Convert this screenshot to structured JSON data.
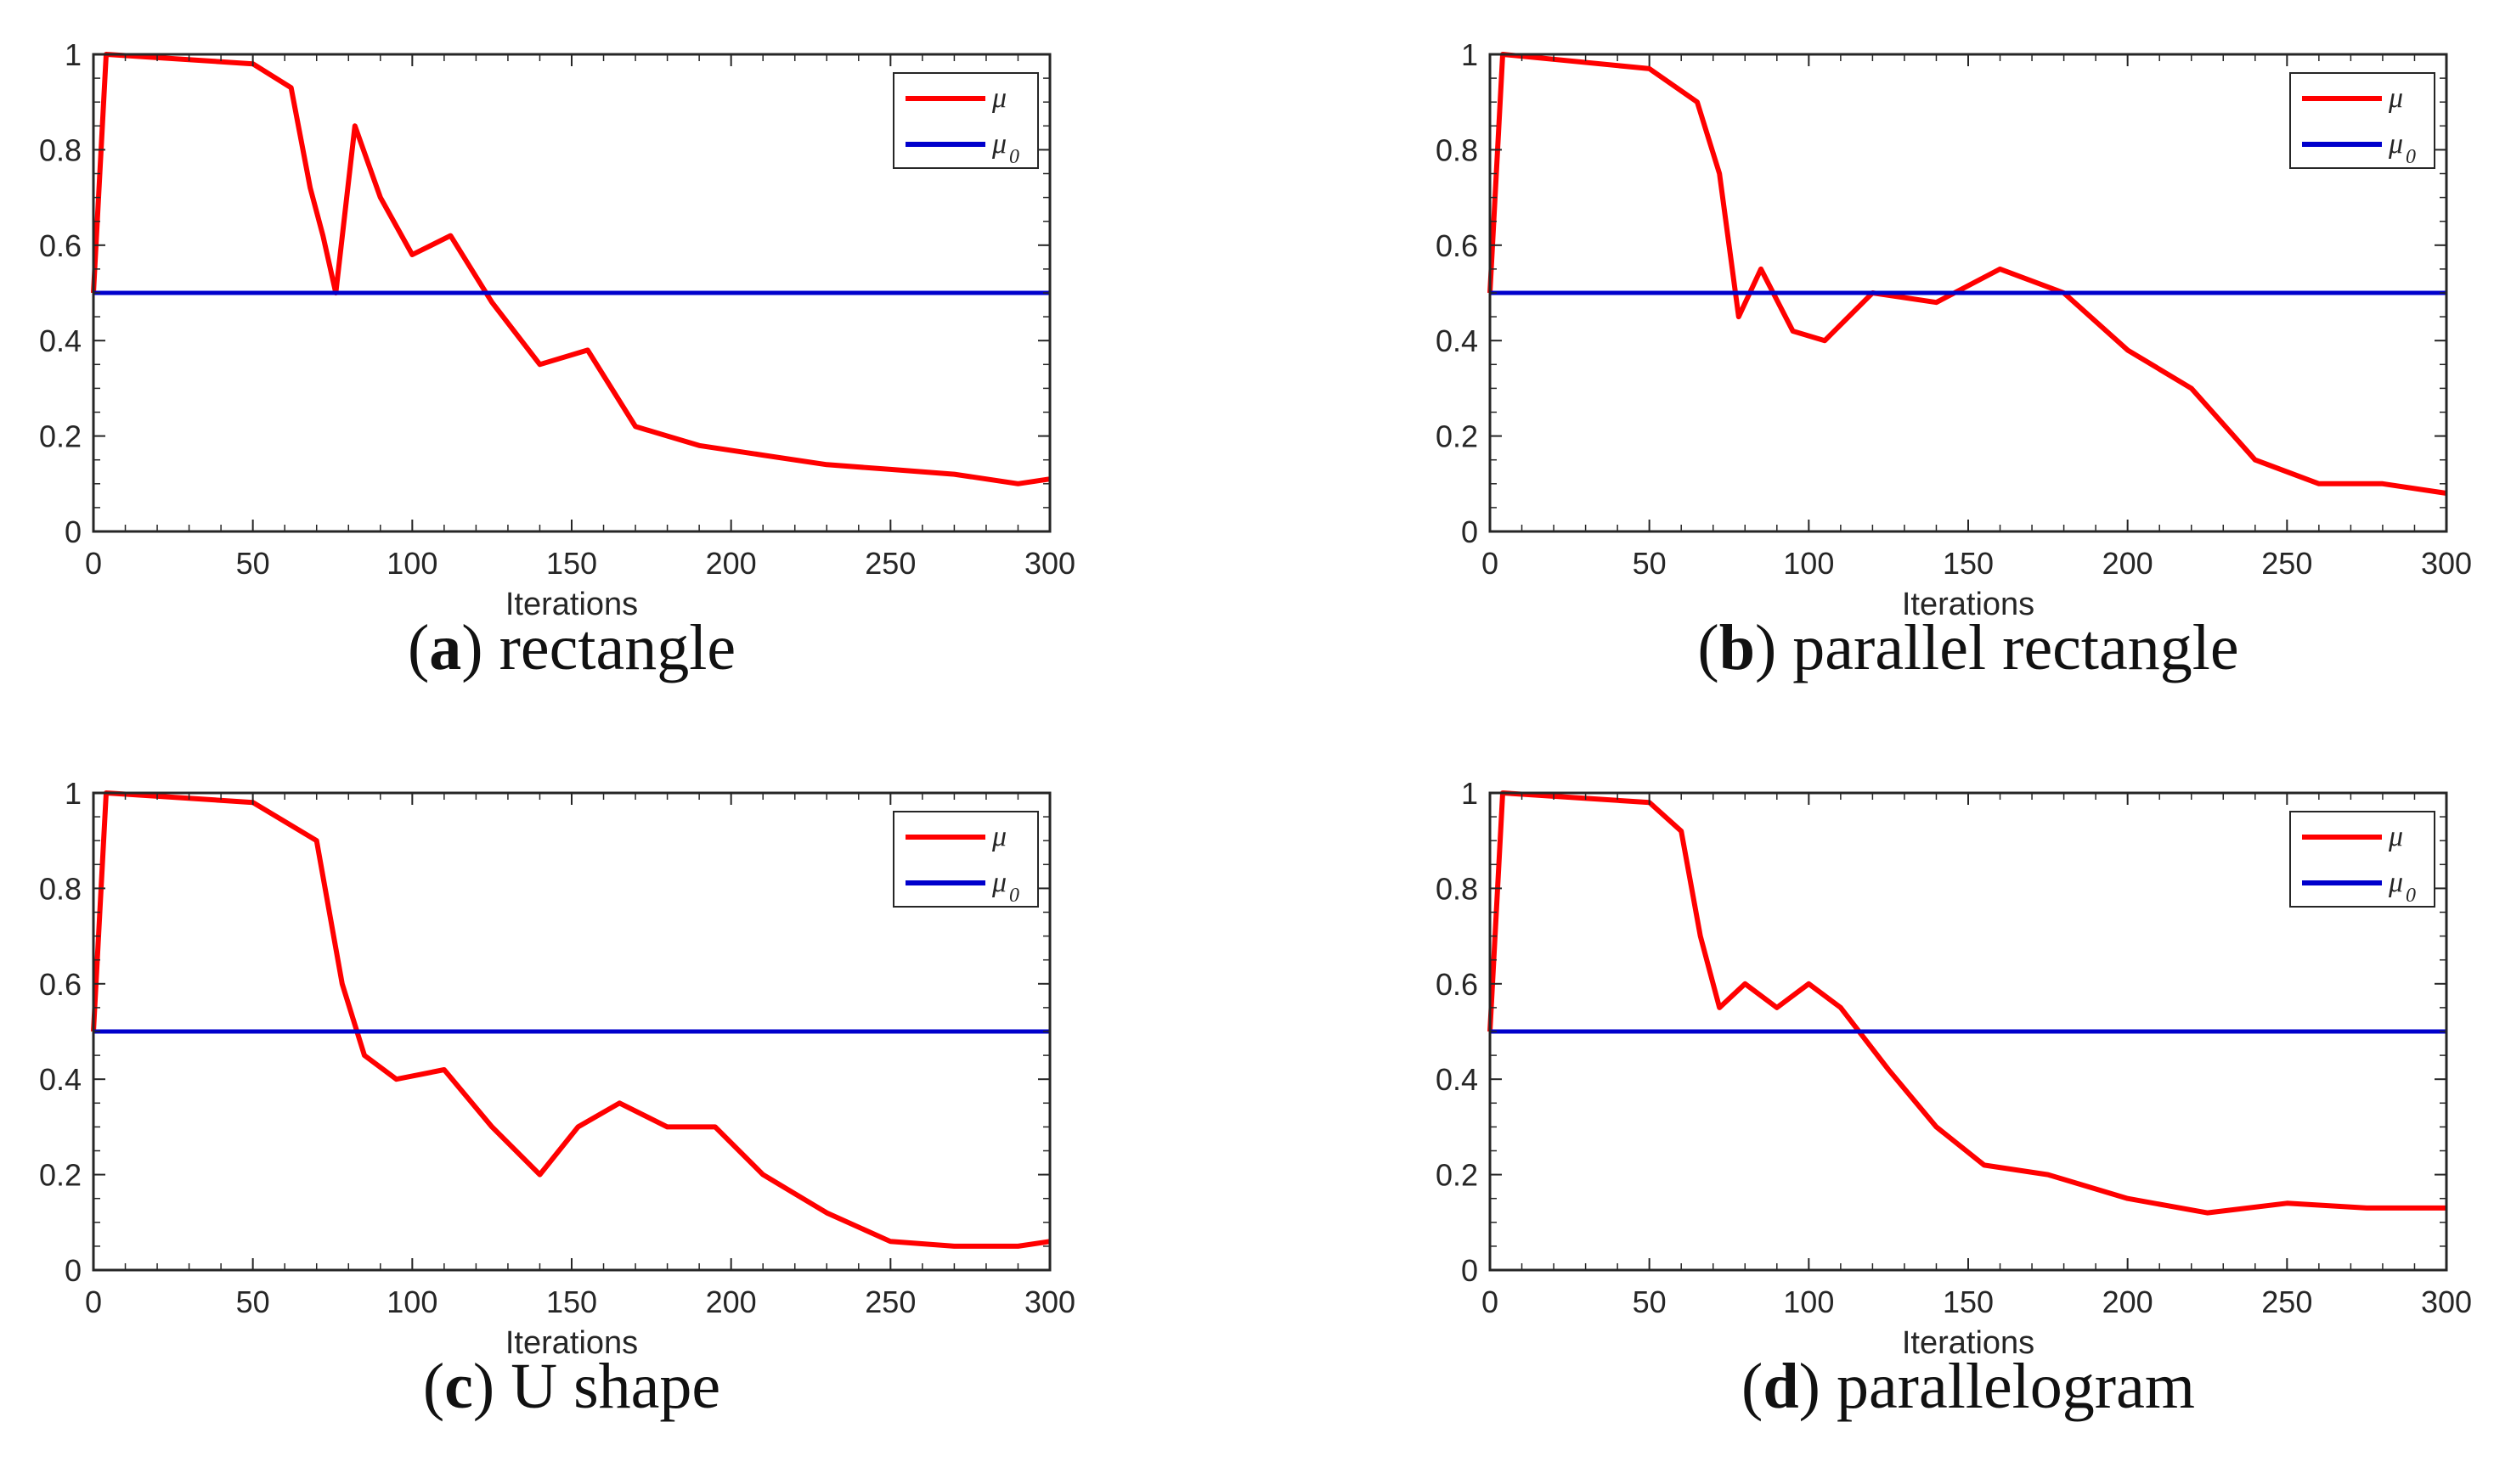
{
  "colors": {
    "mu": "#ff0000",
    "mu0": "#0000cc",
    "axis": "#262626"
  },
  "chart_data": [
    {
      "type": "line",
      "caption_letter": "a",
      "caption_text": "rectangle",
      "xlabel": "Iterations",
      "xlim": [
        0,
        300
      ],
      "ylim": [
        0,
        1
      ],
      "xticks": [
        "0",
        "50",
        "100",
        "150",
        "200",
        "250",
        "300"
      ],
      "yticks": [
        "0",
        "0.2",
        "0.4",
        "0.6",
        "0.8",
        "1"
      ],
      "legend": {
        "position": "top-right",
        "entries": [
          {
            "label": "μ",
            "sub": ""
          },
          {
            "label": "μ",
            "sub": "0"
          }
        ]
      },
      "series": [
        {
          "name": "μ",
          "color": "#ff0000",
          "x": [
            0,
            4,
            50,
            62,
            68,
            72,
            76,
            82,
            90,
            100,
            112,
            125,
            140,
            155,
            170,
            190,
            210,
            230,
            250,
            270,
            290,
            300
          ],
          "values": [
            0.5,
            1.0,
            0.98,
            0.93,
            0.72,
            0.62,
            0.5,
            0.85,
            0.7,
            0.58,
            0.62,
            0.48,
            0.35,
            0.38,
            0.22,
            0.18,
            0.16,
            0.14,
            0.13,
            0.12,
            0.1,
            0.11
          ]
        },
        {
          "name": "μ₀",
          "color": "#0000cc",
          "x": [
            0,
            300
          ],
          "values": [
            0.5,
            0.5
          ]
        }
      ]
    },
    {
      "type": "line",
      "caption_letter": "b",
      "caption_text": "parallel rectangle",
      "xlabel": "Iterations",
      "xlim": [
        0,
        300
      ],
      "ylim": [
        0,
        1
      ],
      "xticks": [
        "0",
        "50",
        "100",
        "150",
        "200",
        "250",
        "300"
      ],
      "yticks": [
        "0",
        "0.2",
        "0.4",
        "0.6",
        "0.8",
        "1"
      ],
      "legend": {
        "position": "top-right",
        "entries": [
          {
            "label": "μ",
            "sub": ""
          },
          {
            "label": "μ",
            "sub": "0"
          }
        ]
      },
      "series": [
        {
          "name": "μ",
          "color": "#ff0000",
          "x": [
            0,
            4,
            50,
            65,
            72,
            78,
            85,
            95,
            105,
            120,
            140,
            160,
            180,
            200,
            220,
            240,
            260,
            280,
            300
          ],
          "values": [
            0.5,
            1.0,
            0.97,
            0.9,
            0.75,
            0.45,
            0.55,
            0.42,
            0.4,
            0.5,
            0.48,
            0.55,
            0.5,
            0.38,
            0.3,
            0.15,
            0.1,
            0.1,
            0.08
          ]
        },
        {
          "name": "μ₀",
          "color": "#0000cc",
          "x": [
            0,
            300
          ],
          "values": [
            0.5,
            0.5
          ]
        }
      ]
    },
    {
      "type": "line",
      "caption_letter": "c",
      "caption_text": "U shape",
      "xlabel": "Iterations",
      "xlim": [
        0,
        300
      ],
      "ylim": [
        0,
        1
      ],
      "xticks": [
        "0",
        "50",
        "100",
        "150",
        "200",
        "250",
        "300"
      ],
      "yticks": [
        "0",
        "0.2",
        "0.4",
        "0.6",
        "0.8",
        "1"
      ],
      "legend": {
        "position": "top-right",
        "entries": [
          {
            "label": "μ",
            "sub": ""
          },
          {
            "label": "μ",
            "sub": "0"
          }
        ]
      },
      "series": [
        {
          "name": "μ",
          "color": "#ff0000",
          "x": [
            0,
            4,
            50,
            70,
            78,
            85,
            95,
            110,
            125,
            140,
            152,
            165,
            180,
            195,
            210,
            230,
            250,
            270,
            290,
            300
          ],
          "values": [
            0.5,
            1.0,
            0.98,
            0.9,
            0.6,
            0.45,
            0.4,
            0.42,
            0.3,
            0.2,
            0.3,
            0.35,
            0.3,
            0.3,
            0.2,
            0.12,
            0.06,
            0.05,
            0.05,
            0.06
          ]
        },
        {
          "name": "μ₀",
          "color": "#0000cc",
          "x": [
            0,
            300
          ],
          "values": [
            0.5,
            0.5
          ]
        }
      ]
    },
    {
      "type": "line",
      "caption_letter": "d",
      "caption_text": "parallelogram",
      "xlabel": "Iterations",
      "xlim": [
        0,
        300
      ],
      "ylim": [
        0,
        1
      ],
      "xticks": [
        "0",
        "50",
        "100",
        "150",
        "200",
        "250",
        "300"
      ],
      "yticks": [
        "0",
        "0.2",
        "0.4",
        "0.6",
        "0.8",
        "1"
      ],
      "legend": {
        "position": "top-right",
        "entries": [
          {
            "label": "μ",
            "sub": ""
          },
          {
            "label": "μ",
            "sub": "0"
          }
        ]
      },
      "series": [
        {
          "name": "μ",
          "color": "#ff0000",
          "x": [
            0,
            4,
            50,
            60,
            66,
            72,
            80,
            90,
            100,
            110,
            125,
            140,
            155,
            175,
            200,
            225,
            250,
            275,
            300
          ],
          "values": [
            0.5,
            1.0,
            0.98,
            0.92,
            0.7,
            0.55,
            0.6,
            0.55,
            0.6,
            0.55,
            0.42,
            0.3,
            0.22,
            0.2,
            0.15,
            0.12,
            0.14,
            0.13,
            0.13
          ]
        },
        {
          "name": "μ₀",
          "color": "#0000cc",
          "x": [
            0,
            300
          ],
          "values": [
            0.5,
            0.5
          ]
        }
      ]
    }
  ]
}
